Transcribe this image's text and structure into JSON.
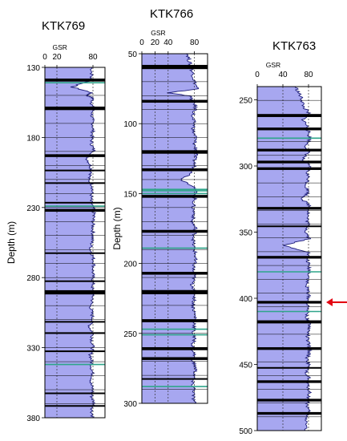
{
  "chart_data": [
    {
      "type": "line",
      "title": "KTK769",
      "xlabel": "GSR",
      "ylabel": "Depth (m)",
      "xlim": [
        0,
        100
      ],
      "xticks": [
        0,
        20,
        80
      ],
      "ylim": [
        130,
        380
      ],
      "yticks": [
        130,
        180,
        230,
        280,
        330,
        380
      ],
      "inverted_y": true,
      "gsr_profile": {
        "depth": [
          130,
          136,
          140,
          144,
          148,
          150,
          152,
          156,
          160,
          165,
          170,
          175,
          180,
          185,
          190,
          195,
          200,
          205,
          210,
          215,
          220,
          225,
          230,
          235,
          240,
          245,
          250,
          255,
          260,
          265,
          270,
          275,
          280,
          285,
          290,
          295,
          300,
          305,
          310,
          315,
          320,
          325,
          330,
          335,
          340,
          345,
          350,
          355,
          360,
          365,
          370,
          375,
          380
        ],
        "gsr": [
          78,
          78,
          72,
          45,
          78,
          70,
          80,
          78,
          80,
          78,
          80,
          80,
          78,
          78,
          82,
          70,
          76,
          78,
          72,
          80,
          78,
          76,
          80,
          82,
          80,
          80,
          80,
          78,
          76,
          80,
          82,
          80,
          80,
          80,
          78,
          80,
          76,
          78,
          80,
          74,
          80,
          78,
          80,
          76,
          78,
          78,
          80,
          76,
          80,
          78,
          82,
          78,
          80
        ]
      },
      "black_bands": [
        [
          138,
          140
        ],
        [
          158,
          160.5
        ],
        [
          192,
          194
        ],
        [
          203,
          204
        ],
        [
          212,
          213
        ],
        [
          226,
          227
        ],
        [
          231,
          233
        ],
        [
          262,
          263
        ],
        [
          282,
          283
        ],
        [
          289,
          292
        ],
        [
          311,
          312
        ],
        [
          319,
          320
        ],
        [
          332,
          333
        ],
        [
          362,
          363
        ],
        [
          371,
          372
        ]
      ],
      "teal_lines": [
        141,
        229,
        342
      ]
    },
    {
      "type": "line",
      "title": "KTK766",
      "xlabel": "GSR",
      "ylabel": "Depth (m)",
      "xlim": [
        0,
        100
      ],
      "xticks": [
        0,
        20,
        40,
        80
      ],
      "ylim": [
        50,
        300
      ],
      "yticks": [
        50,
        100,
        150,
        200,
        250,
        300
      ],
      "inverted_y": true,
      "gsr_profile": {
        "depth": [
          50,
          55,
          60,
          65,
          70,
          75,
          78,
          80,
          85,
          90,
          95,
          100,
          105,
          110,
          115,
          120,
          125,
          130,
          135,
          140,
          145,
          150,
          155,
          160,
          165,
          170,
          175,
          180,
          185,
          190,
          195,
          200,
          205,
          210,
          215,
          220,
          225,
          230,
          235,
          240,
          245,
          250,
          255,
          260,
          265,
          270,
          275,
          280,
          285,
          290,
          295,
          300
        ],
        "gsr": [
          70,
          72,
          75,
          78,
          80,
          85,
          40,
          72,
          80,
          82,
          76,
          80,
          78,
          82,
          80,
          84,
          80,
          80,
          78,
          60,
          80,
          82,
          80,
          78,
          80,
          76,
          82,
          80,
          78,
          80,
          82,
          80,
          78,
          80,
          76,
          82,
          80,
          78,
          80,
          82,
          80,
          78,
          80,
          76,
          80,
          78,
          82,
          80,
          76,
          80,
          78,
          80
        ]
      },
      "black_bands": [
        [
          58,
          61
        ],
        [
          83,
          85
        ],
        [
          119,
          121.5
        ],
        [
          132,
          134
        ],
        [
          151,
          153
        ],
        [
          176,
          178
        ],
        [
          206,
          208
        ],
        [
          219,
          222
        ],
        [
          240,
          242
        ],
        [
          260,
          262
        ],
        [
          267,
          269
        ],
        [
          282,
          283
        ]
      ],
      "teal_lines": [
        147,
        148,
        150,
        189,
        247,
        251,
        288
      ]
    },
    {
      "type": "line",
      "title": "KTK763",
      "xlabel": "GSR",
      "ylabel": "",
      "xlim": [
        0,
        100
      ],
      "xticks": [
        0,
        40,
        80
      ],
      "ylim": [
        240,
        500
      ],
      "yticks": [
        250,
        300,
        350,
        400,
        450,
        500
      ],
      "inverted_y": true,
      "gsr_profile": {
        "depth": [
          240,
          245,
          250,
          255,
          260,
          265,
          270,
          275,
          280,
          285,
          290,
          295,
          300,
          305,
          310,
          315,
          320,
          325,
          330,
          335,
          340,
          345,
          350,
          355,
          360,
          365,
          370,
          375,
          380,
          385,
          390,
          395,
          400,
          405,
          410,
          415,
          420,
          425,
          430,
          435,
          440,
          445,
          450,
          455,
          460,
          465,
          470,
          475,
          480,
          485,
          490,
          495,
          500
        ],
        "gsr": [
          60,
          65,
          70,
          72,
          80,
          72,
          78,
          80,
          82,
          76,
          80,
          70,
          82,
          78,
          80,
          76,
          80,
          70,
          82,
          80,
          78,
          80,
          76,
          82,
          40,
          80,
          78,
          80,
          82,
          80,
          76,
          80,
          80,
          78,
          80,
          76,
          82,
          80,
          78,
          80,
          82,
          78,
          80,
          76,
          80,
          78,
          82,
          80,
          78,
          80,
          76,
          78,
          75
        ]
      },
      "black_bands": [
        [
          261,
          263
        ],
        [
          271,
          273
        ],
        [
          287,
          289
        ],
        [
          296,
          298
        ],
        [
          301,
          303
        ],
        [
          331,
          333
        ],
        [
          345,
          346
        ],
        [
          368,
          370
        ],
        [
          402,
          404
        ],
        [
          417,
          419
        ],
        [
          437,
          439
        ],
        [
          452,
          453
        ],
        [
          462,
          464
        ],
        [
          476,
          478
        ],
        [
          486,
          488
        ]
      ],
      "teal_lines": [
        279,
        380,
        410
      ],
      "annotation": {
        "type": "arrow",
        "depth": 403
      }
    }
  ],
  "colors": {
    "fill": "#a7a7f0",
    "curve": "#1c1c7a",
    "band": "#000000",
    "teal": "#2fa58a",
    "arrow": "#e30613"
  }
}
